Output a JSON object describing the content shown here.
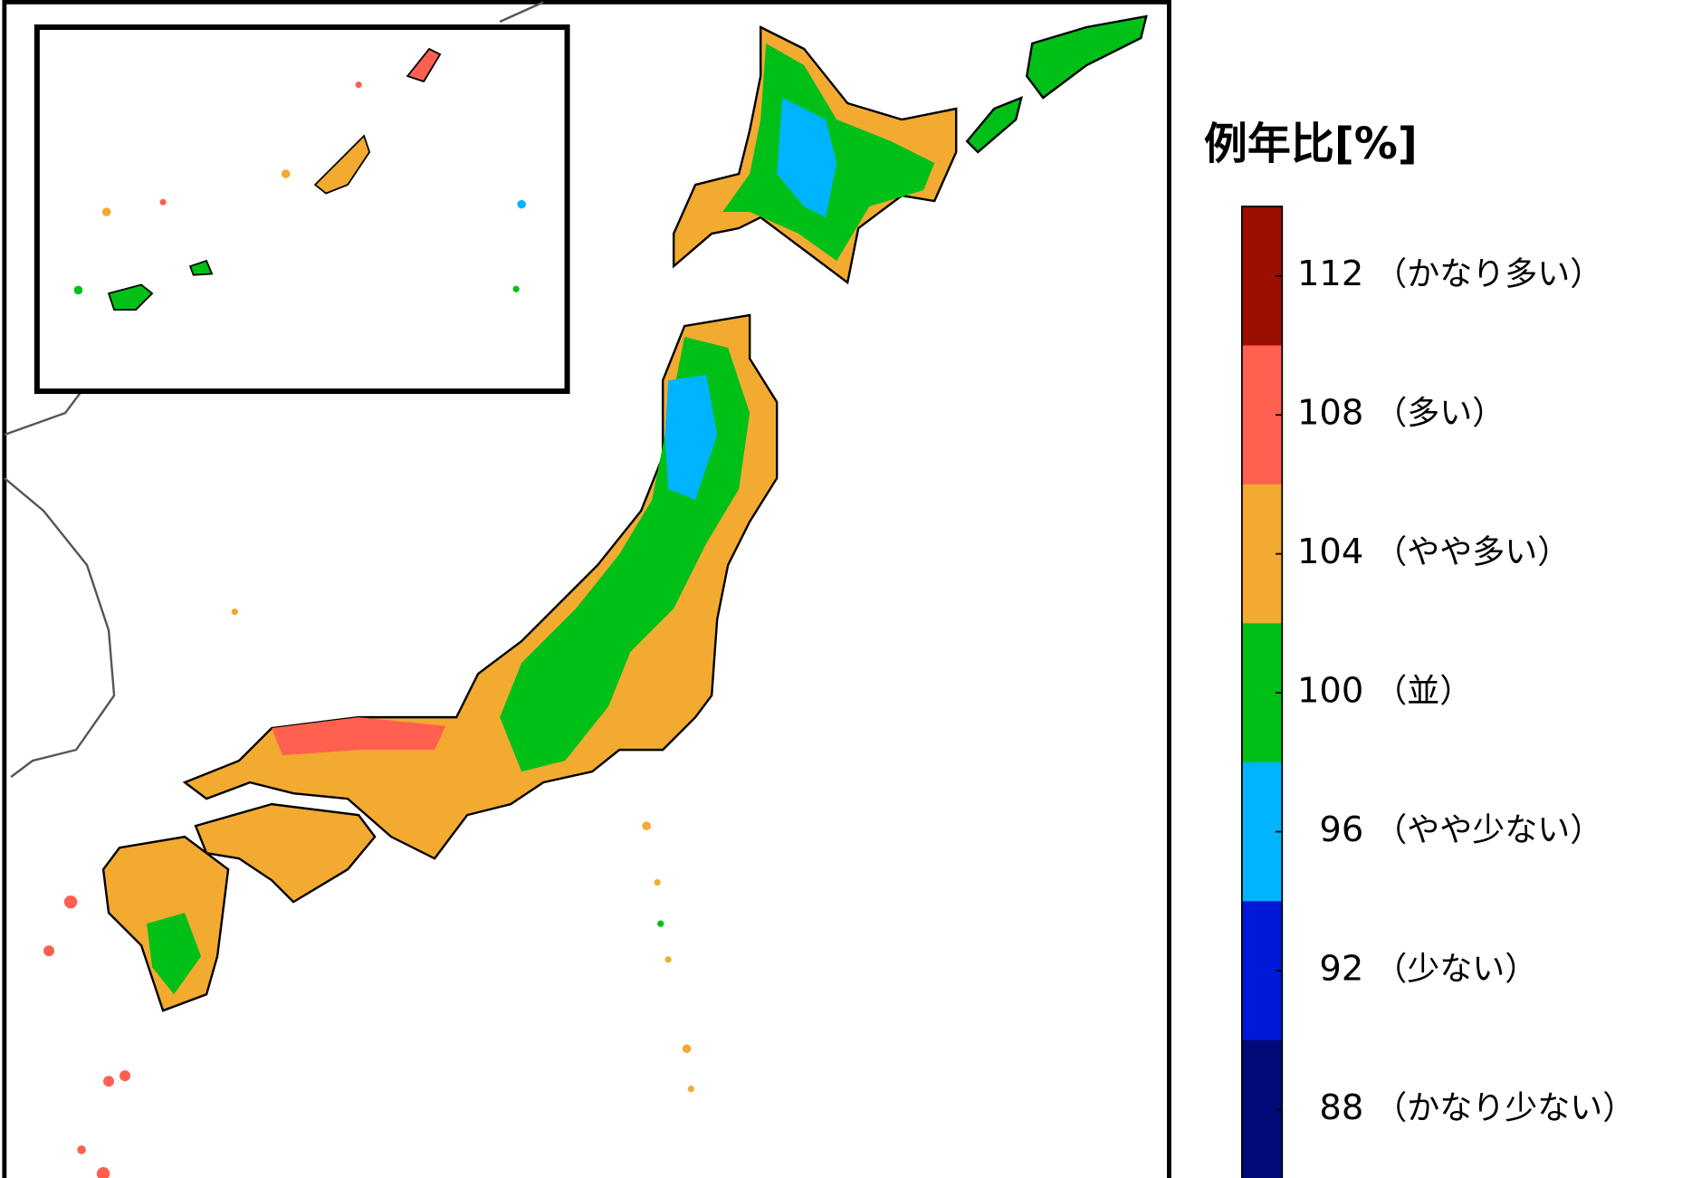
{
  "legend": {
    "title": "例年比[%]",
    "items": [
      {
        "value": 112,
        "label": "（かなり多い）",
        "color": "#9b0e00"
      },
      {
        "value": 108,
        "label": "（多い）",
        "color": "#ff6050"
      },
      {
        "value": 104,
        "label": "（やや多い）",
        "color": "#f2aa30"
      },
      {
        "value": 100,
        "label": "（並）",
        "color": "#00c018"
      },
      {
        "value": 96,
        "label": "（やや少ない）",
        "color": "#00b4ff"
      },
      {
        "value": 92,
        "label": "（少ない）",
        "color": "#0018d8"
      },
      {
        "value": 88,
        "label": "（かなり少ない）",
        "color": "#000a78"
      }
    ]
  }
}
